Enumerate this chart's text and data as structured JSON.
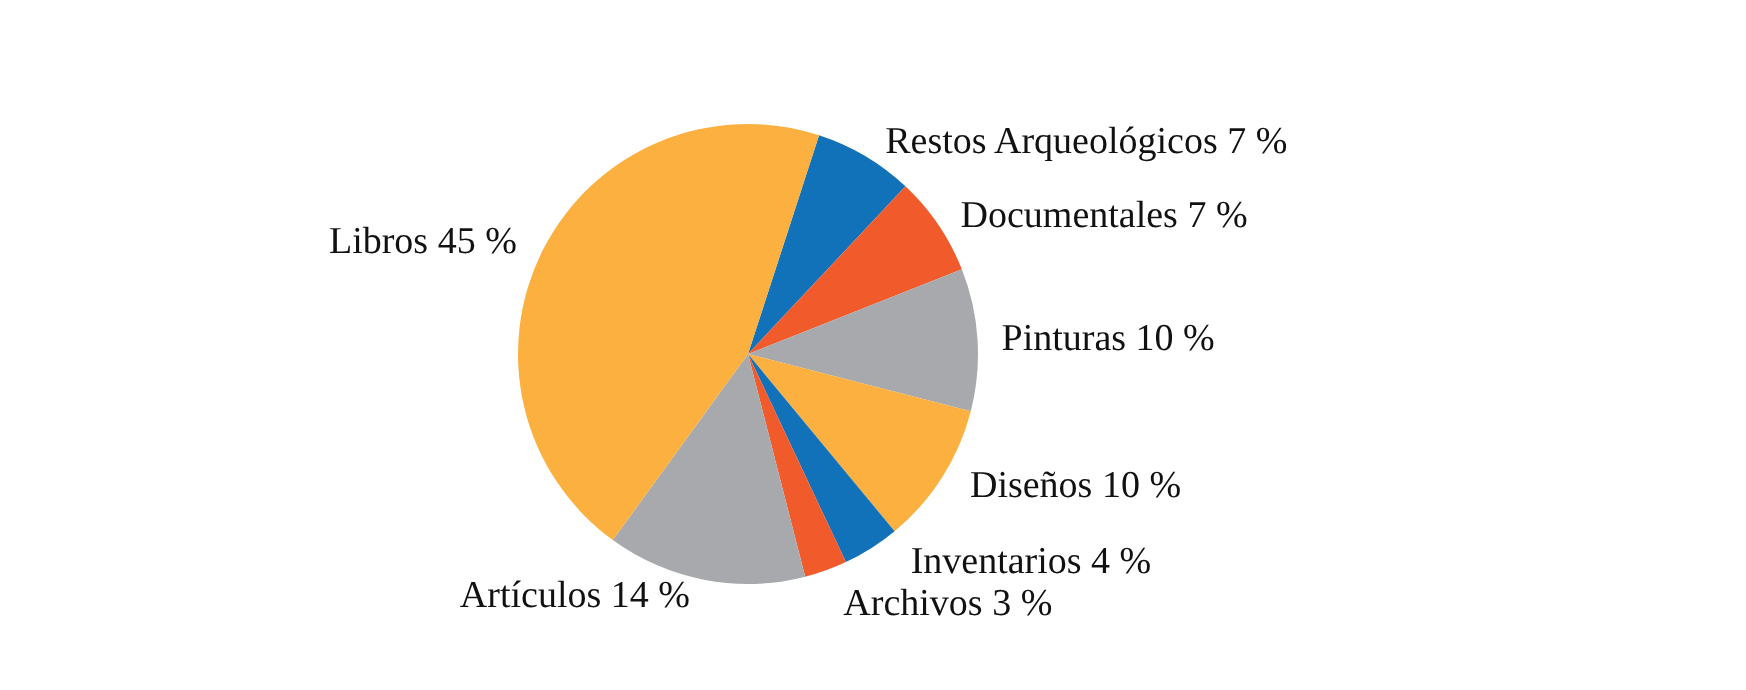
{
  "chart_data": {
    "type": "pie",
    "categories": [
      "Restos Arqueológicos",
      "Documentales",
      "Pinturas",
      "Diseños",
      "Inventarios",
      "Archivos",
      "Artículos",
      "Libros"
    ],
    "values": [
      7,
      7,
      10,
      10,
      4,
      3,
      14,
      45
    ],
    "value_labels": [
      "7 %",
      "7 %",
      "10 %",
      "10 %",
      "4 %",
      "3 %",
      "14 %",
      "45 %"
    ],
    "colors": [
      "#1172ba",
      "#f15a2b",
      "#a7a9ac",
      "#fbb040",
      "#1172ba",
      "#f15a2b",
      "#a7a9ac",
      "#fbb040"
    ],
    "legend": false
  }
}
